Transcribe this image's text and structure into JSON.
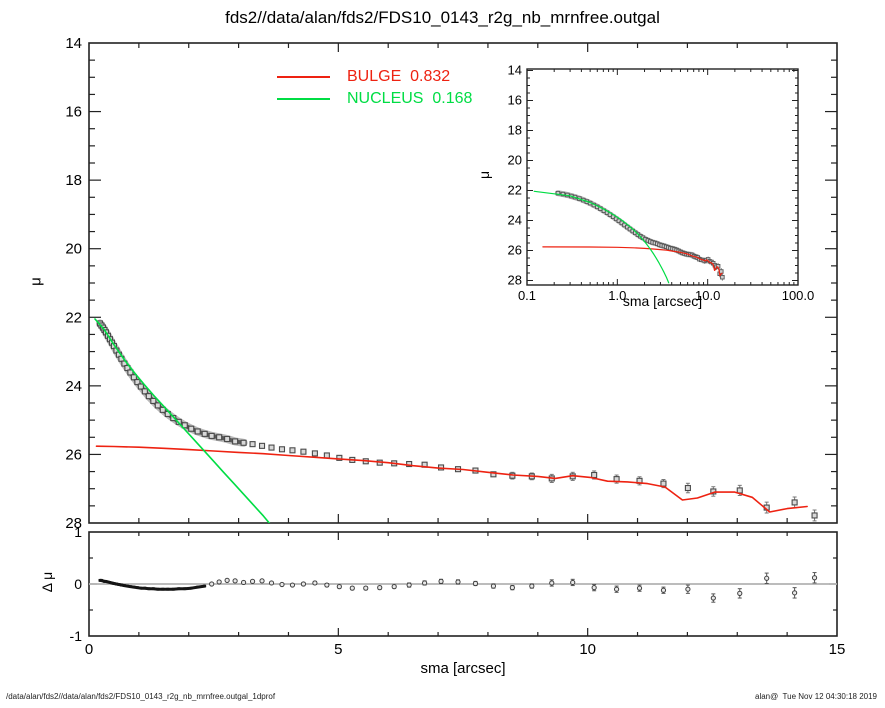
{
  "title": "fds2//data/alan/fds2/FDS10_0143_r2g_nb_mrnfree.outgal",
  "legend": {
    "bulge": "BULGE  0.832",
    "nucleus": "NUCLEUS  0.168"
  },
  "footer": {
    "left": "/data/alan/fds2//data/alan/fds2/FDS10_0143_r2g_nb_mrnfree.outgal_1dprof",
    "right": "alan@  Tue Nov 12 04:30:18 2019"
  },
  "colors": {
    "bulge": "#ee2211",
    "nucleus": "#00dd44",
    "data_edge": "#4a4a4a",
    "data_fill": "#d9d9d9",
    "band": "#b9b9b9",
    "band_core": "#5a5a5a",
    "frame": "#222222",
    "zero_line": "#b3b3b3",
    "error_bar": "#777777"
  },
  "chart_data": [
    {
      "id": "main-profile",
      "type": "scatter",
      "ylabel": "μ",
      "xlim": [
        0,
        15
      ],
      "ylim": [
        28,
        14
      ],
      "x_major_ticks": [
        0,
        5,
        10,
        15
      ],
      "x_minor_step": 1,
      "y_major_ticks": [
        14,
        16,
        18,
        20,
        22,
        24,
        26,
        28
      ],
      "y_minor_step": 0.5,
      "grid": false,
      "legend_position": "top-center",
      "series": [
        {
          "name": "data",
          "type": "scatter",
          "marker": "open-square",
          "x": [
            0.22,
            0.25,
            0.28,
            0.31,
            0.34,
            0.38,
            0.42,
            0.46,
            0.5,
            0.55,
            0.6,
            0.65,
            0.71,
            0.77,
            0.83,
            0.9,
            0.97,
            1.04,
            1.12,
            1.2,
            1.29,
            1.38,
            1.48,
            1.58,
            1.69,
            1.8,
            1.92,
            2.05,
            2.18,
            2.32,
            2.46,
            2.61,
            2.77,
            2.93,
            3.1,
            3.28,
            3.47,
            3.66,
            3.87,
            4.08,
            4.3,
            4.53,
            4.77,
            5.02,
            5.28,
            5.55,
            5.83,
            6.12,
            6.42,
            6.73,
            7.06,
            7.4,
            7.75,
            8.11,
            8.49,
            8.88,
            9.28,
            9.7,
            10.13,
            10.58,
            11.04,
            11.52,
            12.01,
            12.52,
            13.05,
            13.59,
            14.15,
            14.55
          ],
          "y": [
            22.18,
            22.24,
            22.3,
            22.37,
            22.44,
            22.54,
            22.64,
            22.74,
            22.84,
            22.97,
            23.09,
            23.21,
            23.35,
            23.48,
            23.61,
            23.75,
            23.89,
            24.02,
            24.16,
            24.3,
            24.44,
            24.57,
            24.7,
            24.82,
            24.94,
            25.05,
            25.15,
            25.25,
            25.33,
            25.4,
            25.46,
            25.5,
            25.55,
            25.62,
            25.66,
            25.7,
            25.75,
            25.8,
            25.85,
            25.88,
            25.92,
            25.97,
            26.03,
            26.1,
            26.16,
            26.2,
            26.24,
            26.26,
            26.28,
            26.3,
            26.38,
            26.43,
            26.47,
            26.58,
            26.62,
            26.64,
            26.7,
            26.64,
            26.6,
            26.72,
            26.77,
            26.85,
            26.98,
            27.08,
            27.05,
            27.55,
            27.4,
            27.78
          ]
        },
        {
          "name": "BULGE",
          "value": 0.832,
          "type": "line",
          "x": [
            0.15,
            0.5,
            1.0,
            1.5,
            2.0,
            2.5,
            3.0,
            3.5,
            4.0,
            4.5,
            5.0,
            5.5,
            6.0,
            6.5,
            7.0,
            7.5,
            8.0,
            8.5,
            9.0,
            9.35,
            9.7,
            10.05,
            10.4,
            10.8,
            11.2,
            11.55,
            11.9,
            12.2,
            12.55,
            12.95,
            13.3,
            13.65,
            14.0,
            14.4
          ],
          "y": [
            25.76,
            25.77,
            25.79,
            25.82,
            25.86,
            25.9,
            25.94,
            25.98,
            26.03,
            26.08,
            26.13,
            26.18,
            26.24,
            26.33,
            26.4,
            26.44,
            26.52,
            26.6,
            26.64,
            26.7,
            26.62,
            26.67,
            26.78,
            26.8,
            26.85,
            26.95,
            27.33,
            27.27,
            27.1,
            27.1,
            27.25,
            27.68,
            27.58,
            27.52
          ]
        },
        {
          "name": "NUCLEUS",
          "value": 0.168,
          "type": "line",
          "x": [
            0.12,
            0.3,
            0.5,
            0.7,
            0.9,
            1.1,
            1.3,
            1.5,
            1.7,
            1.9,
            2.1,
            2.3,
            2.5,
            2.7,
            2.9,
            3.1,
            3.3,
            3.5,
            3.7
          ],
          "y": [
            22.05,
            22.35,
            22.8,
            23.22,
            23.6,
            23.95,
            24.28,
            24.6,
            24.92,
            25.24,
            25.56,
            25.88,
            26.2,
            26.52,
            26.84,
            27.16,
            27.48,
            27.8,
            28.15
          ]
        }
      ]
    },
    {
      "id": "inset-log-profile",
      "type": "line",
      "xlabel": "sma [arcsec]",
      "ylabel": "μ",
      "x_scale": "log",
      "xlim": [
        0.1,
        100.0
      ],
      "ylim": [
        28,
        14
      ],
      "x_tick_labels": [
        "0.1",
        "1.0",
        "10.0",
        "100.0"
      ],
      "y_major_ticks": [
        14,
        16,
        18,
        20,
        22,
        24,
        26,
        28
      ],
      "y_minor_step": 0.5,
      "note": "same data, BULGE and NUCLEUS series as main panel, log x-axis"
    },
    {
      "id": "residual",
      "type": "scatter",
      "xlabel": "sma [arcsec]",
      "ylabel": "Δ μ",
      "xlim": [
        0,
        15
      ],
      "ylim": [
        -1,
        1
      ],
      "x_major_ticks": [
        0,
        5,
        10,
        15
      ],
      "x_minor_step": 1,
      "y_major_ticks": [
        -1,
        0,
        1
      ],
      "y_minor_step": 0.5,
      "x": [
        0.22,
        0.25,
        0.28,
        0.31,
        0.34,
        0.38,
        0.42,
        0.46,
        0.5,
        0.55,
        0.6,
        0.65,
        0.71,
        0.77,
        0.83,
        0.9,
        0.97,
        1.04,
        1.12,
        1.2,
        1.29,
        1.38,
        1.48,
        1.58,
        1.69,
        1.8,
        1.92,
        2.05,
        2.18,
        2.32,
        2.46,
        2.61,
        2.77,
        2.93,
        3.1,
        3.28,
        3.47,
        3.66,
        3.87,
        4.08,
        4.3,
        4.53,
        4.77,
        5.02,
        5.28,
        5.55,
        5.83,
        6.12,
        6.42,
        6.73,
        7.06,
        7.4,
        7.75,
        8.11,
        8.49,
        8.88,
        9.28,
        9.7,
        10.13,
        10.58,
        11.04,
        11.52,
        12.01,
        12.52,
        13.05,
        13.59,
        14.15,
        14.55
      ],
      "dmu": [
        0.07,
        0.07,
        0.06,
        0.05,
        0.05,
        0.04,
        0.03,
        0.02,
        0.01,
        0.0,
        -0.01,
        -0.02,
        -0.03,
        -0.04,
        -0.05,
        -0.06,
        -0.07,
        -0.08,
        -0.08,
        -0.09,
        -0.09,
        -0.1,
        -0.1,
        -0.1,
        -0.1,
        -0.09,
        -0.09,
        -0.08,
        -0.06,
        -0.04,
        0.0,
        0.04,
        0.07,
        0.06,
        0.03,
        0.05,
        0.06,
        0.02,
        -0.01,
        -0.02,
        0.0,
        0.02,
        -0.02,
        -0.05,
        -0.08,
        -0.08,
        -0.07,
        -0.05,
        -0.02,
        0.02,
        0.05,
        0.04,
        0.01,
        -0.04,
        -0.07,
        -0.04,
        0.02,
        0.03,
        -0.07,
        -0.1,
        -0.08,
        -0.12,
        -0.1,
        -0.27,
        -0.18,
        0.11,
        -0.17,
        0.12
      ],
      "err": [
        0.01,
        0.01,
        0.01,
        0.01,
        0.01,
        0.01,
        0.01,
        0.01,
        0.01,
        0.01,
        0.01,
        0.01,
        0.01,
        0.01,
        0.01,
        0.01,
        0.01,
        0.01,
        0.01,
        0.01,
        0.01,
        0.01,
        0.01,
        0.01,
        0.01,
        0.01,
        0.01,
        0.01,
        0.01,
        0.01,
        0.02,
        0.02,
        0.02,
        0.02,
        0.02,
        0.02,
        0.02,
        0.02,
        0.02,
        0.02,
        0.03,
        0.03,
        0.03,
        0.03,
        0.03,
        0.03,
        0.03,
        0.03,
        0.04,
        0.04,
        0.04,
        0.04,
        0.04,
        0.04,
        0.04,
        0.04,
        0.06,
        0.06,
        0.06,
        0.06,
        0.06,
        0.06,
        0.08,
        0.08,
        0.09,
        0.1,
        0.1,
        0.1
      ]
    }
  ]
}
